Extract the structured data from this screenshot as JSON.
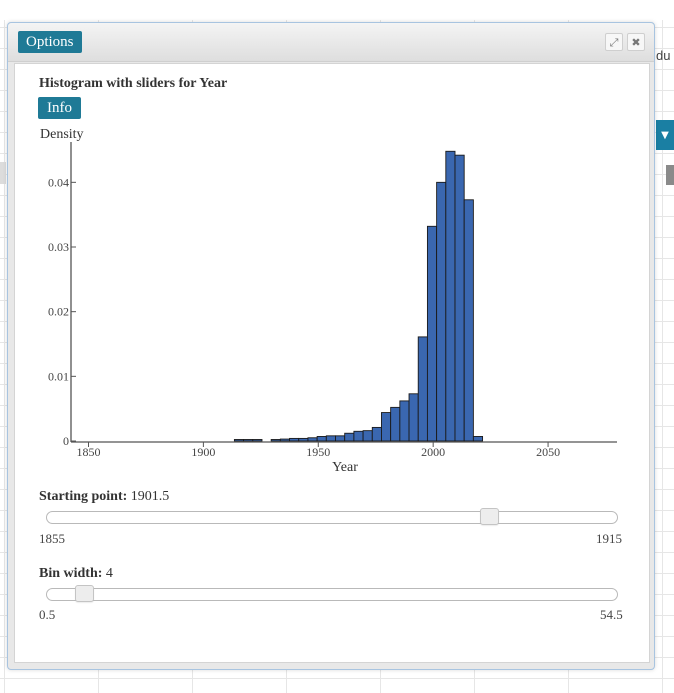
{
  "background": {
    "side_text": "du"
  },
  "dialog": {
    "title": "Options",
    "heading": "Histogram with sliders for Year",
    "info_label": "Info"
  },
  "chart_data": {
    "type": "bar",
    "ylabel": "Density",
    "xlabel": "Year",
    "xlim": [
      1845,
      2080
    ],
    "ylim": [
      0,
      0.045
    ],
    "x_ticks": [
      "1850",
      "1900",
      "1950",
      "2000",
      "2050"
    ],
    "y_ticks": [
      "0",
      "0.01",
      "0.02",
      "0.03",
      "0.04"
    ],
    "bin_width": 4,
    "bins": [
      {
        "x0": 1913.5,
        "x1": 1917.5,
        "y": 0.0002
      },
      {
        "x0": 1917.5,
        "x1": 1921.5,
        "y": 0.0002
      },
      {
        "x0": 1921.5,
        "x1": 1925.5,
        "y": 0.0002
      },
      {
        "x0": 1929.5,
        "x1": 1933.5,
        "y": 0.0002
      },
      {
        "x0": 1933.5,
        "x1": 1937.5,
        "y": 0.0003
      },
      {
        "x0": 1937.5,
        "x1": 1941.5,
        "y": 0.0004
      },
      {
        "x0": 1941.5,
        "x1": 1945.5,
        "y": 0.0004
      },
      {
        "x0": 1945.5,
        "x1": 1949.5,
        "y": 0.0005
      },
      {
        "x0": 1949.5,
        "x1": 1953.5,
        "y": 0.0007
      },
      {
        "x0": 1953.5,
        "x1": 1957.5,
        "y": 0.0008
      },
      {
        "x0": 1957.5,
        "x1": 1961.5,
        "y": 0.0008
      },
      {
        "x0": 1961.5,
        "x1": 1965.5,
        "y": 0.0012
      },
      {
        "x0": 1965.5,
        "x1": 1969.5,
        "y": 0.0015
      },
      {
        "x0": 1969.5,
        "x1": 1973.5,
        "y": 0.0016
      },
      {
        "x0": 1973.5,
        "x1": 1977.5,
        "y": 0.0021
      },
      {
        "x0": 1977.5,
        "x1": 1981.5,
        "y": 0.0044
      },
      {
        "x0": 1981.5,
        "x1": 1985.5,
        "y": 0.0052
      },
      {
        "x0": 1985.5,
        "x1": 1989.5,
        "y": 0.0062
      },
      {
        "x0": 1989.5,
        "x1": 1993.5,
        "y": 0.0073
      },
      {
        "x0": 1993.5,
        "x1": 1997.5,
        "y": 0.0161
      },
      {
        "x0": 1997.5,
        "x1": 2001.5,
        "y": 0.0332
      },
      {
        "x0": 2001.5,
        "x1": 2005.5,
        "y": 0.04
      },
      {
        "x0": 2005.5,
        "x1": 2009.5,
        "y": 0.0448
      },
      {
        "x0": 2009.5,
        "x1": 2013.5,
        "y": 0.0442
      },
      {
        "x0": 2013.5,
        "x1": 2017.5,
        "y": 0.0373
      },
      {
        "x0": 2017.5,
        "x1": 2021.5,
        "y": 0.0007
      }
    ]
  },
  "sliders": {
    "start": {
      "label": "Starting point:",
      "value": "1901.5",
      "min": "1855",
      "max": "1915",
      "position": 0.775
    },
    "binwidth": {
      "label": "Bin width:",
      "value": "4",
      "min": "0.5",
      "max": "54.5",
      "position": 0.065
    }
  },
  "colors": {
    "accent": "#1f7a96",
    "bar_fill": "#3a67b0",
    "bar_stroke": "#1a1a1a"
  }
}
